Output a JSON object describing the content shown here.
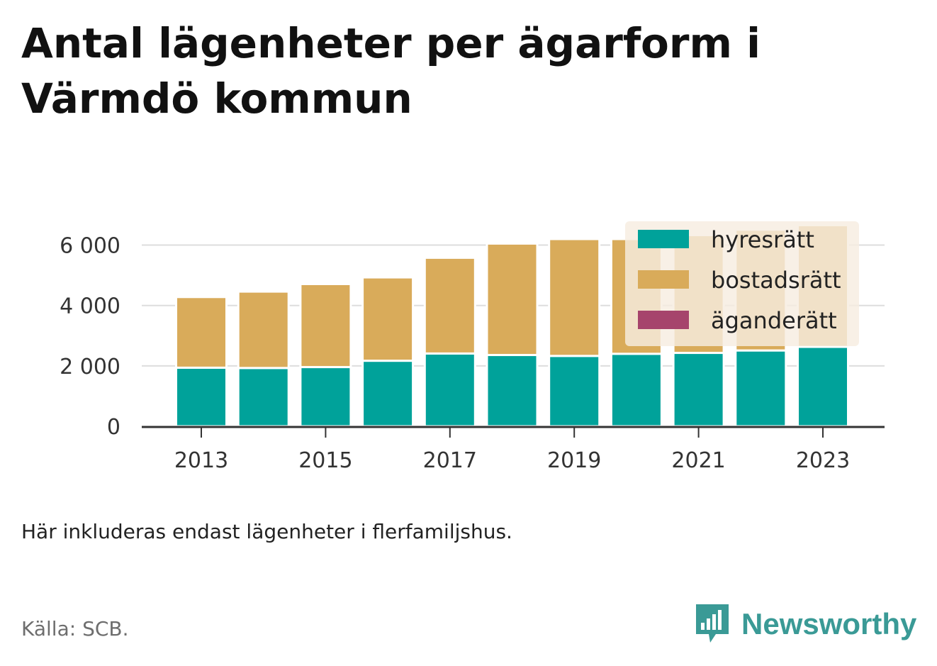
{
  "title": "Antal lägenheter per ägarform i Värmdö kommun",
  "note": "Här inkluderas endast lägenheter i flerfamiljshus.",
  "source": "Källa: SCB.",
  "logo": {
    "text": "Newsworthy",
    "icon": "newsworthy-logo-icon",
    "color": "#3a9a96"
  },
  "colors": {
    "hyresratt": "#00a29a",
    "bostadsratt": "#d9ab5a",
    "aganderatt": "#a6446c",
    "legend_bg": "#f7ede0",
    "grid": "#dddddd",
    "axis": "#333333"
  },
  "chart_data": {
    "type": "bar",
    "stacked": true,
    "categories": [
      "2013",
      "2014",
      "2015",
      "2016",
      "2017",
      "2018",
      "2019",
      "2020",
      "2021",
      "2022",
      "2023"
    ],
    "x_tick_labels": [
      "2013",
      "2015",
      "2017",
      "2019",
      "2021",
      "2023"
    ],
    "y_ticks": [
      0,
      2000,
      4000,
      6000
    ],
    "y_tick_labels": [
      "0",
      "2 000",
      "4 000",
      "6 000"
    ],
    "ylim": [
      0,
      6600
    ],
    "grid": true,
    "legend_position": "top-right",
    "series": [
      {
        "name": "hyresrätt",
        "color": "#00a29a",
        "values": [
          1940,
          1930,
          1960,
          2170,
          2410,
          2360,
          2330,
          2400,
          2430,
          2510,
          2630
        ]
      },
      {
        "name": "bostadsrätt",
        "color": "#d9ab5a",
        "values": [
          2340,
          2530,
          2750,
          2760,
          3170,
          3690,
          3870,
          3800,
          3900,
          4000,
          4030
        ]
      },
      {
        "name": "äganderätt",
        "color": "#a6446c",
        "values": [
          0,
          0,
          0,
          0,
          0,
          0,
          0,
          0,
          0,
          0,
          0
        ]
      }
    ]
  }
}
